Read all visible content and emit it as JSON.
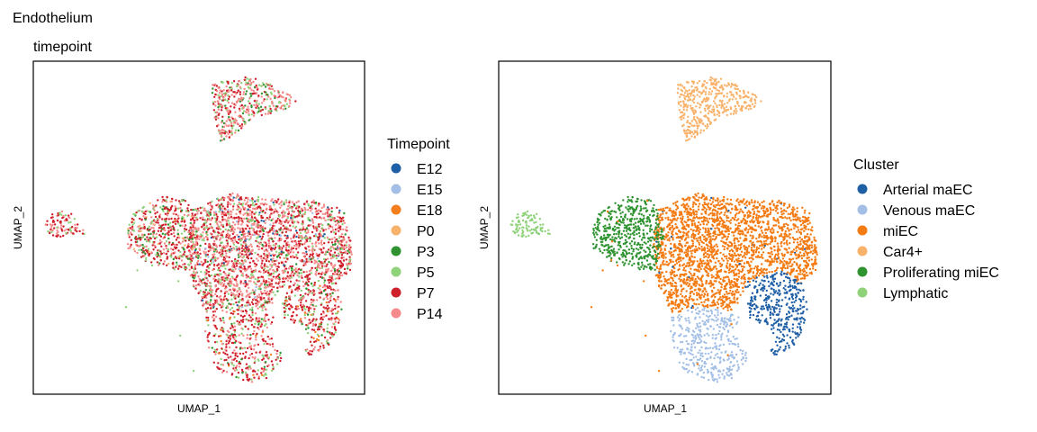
{
  "figure": {
    "title": "Endothelium",
    "subtitle": "timepoint"
  },
  "chart_data": [
    {
      "type": "scatter",
      "xlabel": "UMAP_1",
      "ylabel": "UMAP_2",
      "grid": false,
      "legend_position": "right",
      "legend_title": "Timepoint",
      "series": [
        {
          "name": "E12",
          "color": "#1f5fa6"
        },
        {
          "name": "E15",
          "color": "#a3bfe6"
        },
        {
          "name": "E18",
          "color": "#f47f1f"
        },
        {
          "name": "P0",
          "color": "#f9b26b"
        },
        {
          "name": "P3",
          "color": "#2e9330"
        },
        {
          "name": "P5",
          "color": "#8fd27a"
        },
        {
          "name": "P7",
          "color": "#cf1f2a"
        },
        {
          "name": "P14",
          "color": "#f58a8a"
        }
      ]
    },
    {
      "type": "scatter",
      "xlabel": "UMAP_1",
      "ylabel": "UMAP_2",
      "grid": false,
      "legend_position": "right",
      "legend_title": "Cluster",
      "series": [
        {
          "name": "Arterial maEC",
          "color": "#1f5fa6"
        },
        {
          "name": "Venous maEC",
          "color": "#a3bfe6"
        },
        {
          "name": "miEC",
          "color": "#f47a12"
        },
        {
          "name": "Car4+",
          "color": "#f9b26b"
        },
        {
          "name": "Proliferating miEC",
          "color": "#2e9330"
        },
        {
          "name": "Lymphatic",
          "color": "#8fd27a"
        }
      ]
    }
  ]
}
